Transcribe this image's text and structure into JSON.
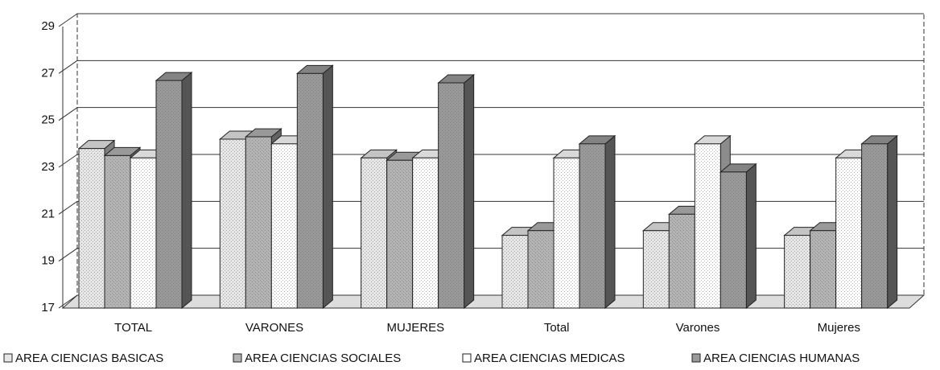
{
  "chart_data": {
    "type": "bar3d",
    "categories": [
      "TOTAL",
      "VARONES",
      "MUJERES",
      "Total",
      "Varones",
      "Mujeres"
    ],
    "series": [
      {
        "name": "AREA CIENCIAS BASICAS",
        "color": "#e6e6e6",
        "values": [
          23.8,
          24.2,
          23.4,
          20.1,
          20.3,
          20.1
        ]
      },
      {
        "name": "AREA CIENCIAS SOCIALES",
        "color": "#b4b4b4",
        "values": [
          23.5,
          24.3,
          23.3,
          20.3,
          21.0,
          20.3
        ]
      },
      {
        "name": "AREA CIENCIAS MEDICAS",
        "color": "#ffffff",
        "values": [
          23.4,
          24.0,
          23.4,
          23.4,
          24.0,
          23.4
        ]
      },
      {
        "name": "AREA CIENCIAS HUMANAS",
        "color": "#9a9a9a",
        "values": [
          26.7,
          27.0,
          26.6,
          24.0,
          22.8,
          24.0
        ]
      }
    ],
    "ylim": [
      17,
      29
    ],
    "yticks": [
      17,
      19,
      21,
      23,
      25,
      27,
      29
    ],
    "grid": true
  }
}
